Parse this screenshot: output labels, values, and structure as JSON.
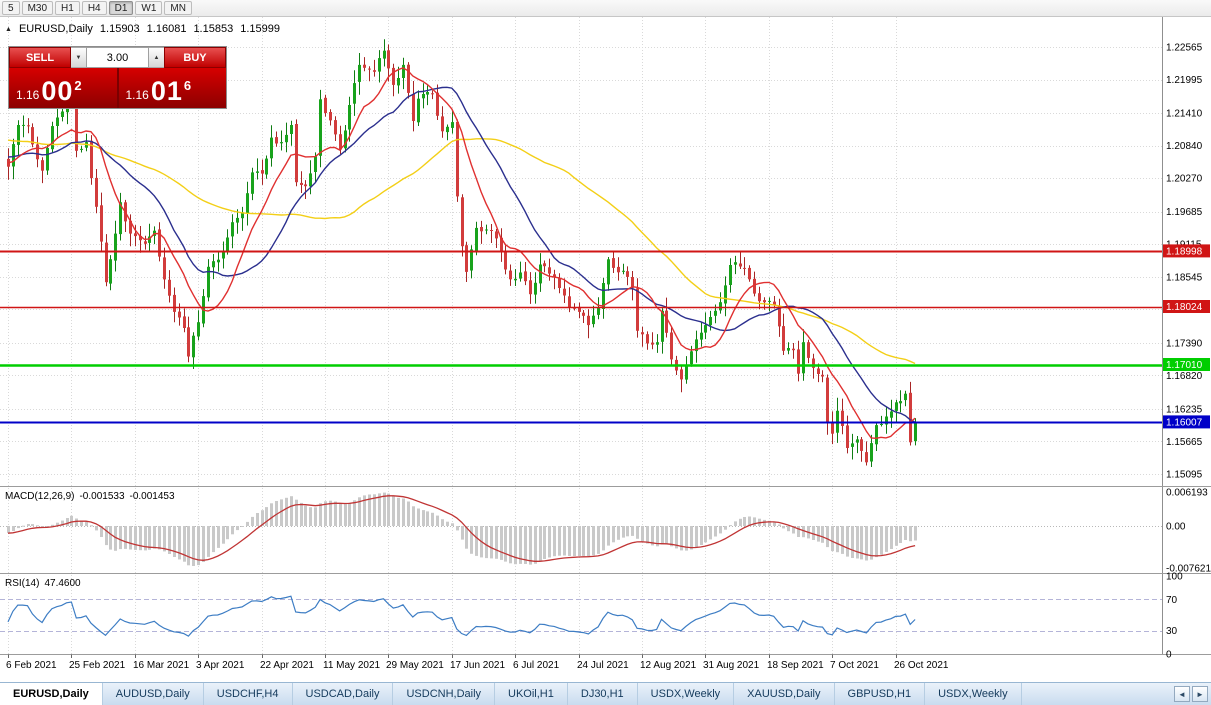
{
  "toolbar": {
    "timeframes": [
      "5",
      "M30",
      "H1",
      "H4",
      "D1",
      "W1",
      "MN"
    ],
    "active": "D1"
  },
  "icons": {
    "collapse_triangle": "▲",
    "spin_up": "▲",
    "spin_down": "▼",
    "tab_scroll_left": "◄",
    "tab_scroll_right": "►"
  },
  "chart_header": {
    "symbol": "EURUSD,Daily",
    "open": "1.15903",
    "high": "1.16081",
    "low": "1.15853",
    "close": "1.15999"
  },
  "trade_panel": {
    "sell_label": "SELL",
    "buy_label": "BUY",
    "volume": "3.00",
    "sell_price": {
      "prefix": "1.16",
      "big": "00",
      "sup": "2"
    },
    "buy_price": {
      "prefix": "1.16",
      "big": "01",
      "sup": "6"
    }
  },
  "indicators": {
    "macd": {
      "name": "MACD(12,26,9)",
      "value_main": "-0.001533",
      "value_signal": "-0.001453"
    },
    "rsi": {
      "name": "RSI(14)",
      "value": "47.4600"
    }
  },
  "price_axis": {
    "labels": [
      "1.22565",
      "1.21995",
      "1.21410",
      "1.20840",
      "1.20270",
      "1.19685",
      "1.19115",
      "1.18545",
      "1.17975",
      "1.17390",
      "1.16820",
      "1.16235",
      "1.15665",
      "1.15095"
    ]
  },
  "macd_axis": [
    {
      "label": "0.006193",
      "value": 0.006193
    },
    {
      "label": "0.00",
      "value": 0
    },
    {
      "label": "-0.007621",
      "value": -0.007621
    }
  ],
  "rsi_axis": [
    {
      "label": "100",
      "value": 100
    },
    {
      "label": "70",
      "value": 70
    },
    {
      "label": "30",
      "value": 30
    },
    {
      "label": "0",
      "value": 0
    }
  ],
  "levels": [
    {
      "price": "1.18998",
      "color": "#d01515",
      "thickness": 2
    },
    {
      "price": "1.18024",
      "color": "#d01515",
      "thickness": 1.5
    },
    {
      "price": "1.17010",
      "color": "#00ce00",
      "thickness": 2.5
    },
    {
      "price": "1.16007",
      "color": "#0000c8",
      "thickness": 2
    }
  ],
  "date_axis": [
    {
      "label": "6 Feb 2021",
      "index": 0
    },
    {
      "label": "25 Feb 2021",
      "index": 13
    },
    {
      "label": "16 Mar 2021",
      "index": 26
    },
    {
      "label": "3 Apr 2021",
      "index": 39
    },
    {
      "label": "22 Apr 2021",
      "index": 52
    },
    {
      "label": "11 May 2021",
      "index": 65
    },
    {
      "label": "29 May 2021",
      "index": 78
    },
    {
      "label": "17 Jun 2021",
      "index": 91
    },
    {
      "label": "6 Jul 2021",
      "index": 104
    },
    {
      "label": "24 Jul 2021",
      "index": 117
    },
    {
      "label": "12 Aug 2021",
      "index": 130
    },
    {
      "label": "31 Aug 2021",
      "index": 143
    },
    {
      "label": "18 Sep 2021",
      "index": 156
    },
    {
      "label": "7 Oct 2021",
      "index": 169
    },
    {
      "label": "26 Oct 2021",
      "index": 182
    }
  ],
  "bottom_tabs": {
    "items": [
      {
        "label": "EURUSD,Daily",
        "active": true
      },
      {
        "label": "AUDUSD,Daily",
        "active": false
      },
      {
        "label": "USDCHF,H4",
        "active": false
      },
      {
        "label": "USDCAD,Daily",
        "active": false
      },
      {
        "label": "USDCNH,Daily",
        "active": false
      },
      {
        "label": "UKOil,H1",
        "active": false
      },
      {
        "label": "DJ30,H1",
        "active": false
      },
      {
        "label": "USDX,Weekly",
        "active": false
      },
      {
        "label": "XAUUSD,Daily",
        "active": false
      },
      {
        "label": "GBPUSD,H1",
        "active": false
      },
      {
        "label": "USDX,Weekly",
        "active": false
      }
    ]
  },
  "colors": {
    "candle_up": "#18a31c",
    "candle_up_dark": "#0f7d13",
    "candle_down": "#d23c3c",
    "candle_down_dark": "#a82525",
    "macd_hist": "#c9c9c9",
    "macd_signal": "#c03434",
    "rsi_line": "#3d7dc4",
    "rsi_levels": "#b4b4d8",
    "grid": "#d9d9d9",
    "panel_divider": "#9c9c9c",
    "axis_text": "#000000"
  },
  "chart_data": {
    "type": "candlestick",
    "symbol": "EURUSD",
    "timeframe": "Daily",
    "num_candles": 187,
    "visible_price_range": [
      1.15095,
      1.22565
    ],
    "prehistory": {
      "bars": 60,
      "start": 1.216
    },
    "close_anchors": [
      [
        0,
        1.2047
      ],
      [
        2,
        1.212
      ],
      [
        4,
        1.2118
      ],
      [
        7,
        1.204
      ],
      [
        9,
        1.2118
      ],
      [
        12,
        1.2165
      ],
      [
        13,
        1.2172
      ],
      [
        14,
        1.2075
      ],
      [
        16,
        1.209
      ],
      [
        19,
        1.1916
      ],
      [
        20,
        1.1845
      ],
      [
        22,
        1.193
      ],
      [
        23,
        1.1985
      ],
      [
        25,
        1.193
      ],
      [
        28,
        1.1912
      ],
      [
        30,
        1.1935
      ],
      [
        32,
        1.185
      ],
      [
        34,
        1.1793
      ],
      [
        36,
        1.1765
      ],
      [
        37,
        1.1715
      ],
      [
        39,
        1.1775
      ],
      [
        41,
        1.1872
      ],
      [
        44,
        1.19
      ],
      [
        46,
        1.195
      ],
      [
        48,
        1.1967
      ],
      [
        50,
        1.2037
      ],
      [
        52,
        1.2035
      ],
      [
        54,
        1.2098
      ],
      [
        56,
        1.209
      ],
      [
        58,
        1.212
      ],
      [
        59,
        1.202
      ],
      [
        61,
        1.2013
      ],
      [
        63,
        1.2065
      ],
      [
        64,
        1.2165
      ],
      [
        66,
        1.2128
      ],
      [
        68,
        1.2077
      ],
      [
        70,
        1.2155
      ],
      [
        72,
        1.2225
      ],
      [
        75,
        1.2213
      ],
      [
        77,
        1.225
      ],
      [
        79,
        1.219
      ],
      [
        81,
        1.2225
      ],
      [
        83,
        1.2127
      ],
      [
        84,
        1.2166
      ],
      [
        87,
        1.2174
      ],
      [
        89,
        1.2109
      ],
      [
        91,
        1.2125
      ],
      [
        92,
        1.1995
      ],
      [
        93,
        1.1908
      ],
      [
        94,
        1.1863
      ],
      [
        96,
        1.194
      ],
      [
        99,
        1.1935
      ],
      [
        101,
        1.1897
      ],
      [
        103,
        1.185
      ],
      [
        105,
        1.1862
      ],
      [
        107,
        1.1824
      ],
      [
        109,
        1.1876
      ],
      [
        111,
        1.186
      ],
      [
        113,
        1.1835
      ],
      [
        115,
        1.18
      ],
      [
        117,
        1.1793
      ],
      [
        119,
        1.177
      ],
      [
        121,
        1.18
      ],
      [
        123,
        1.1885
      ],
      [
        124,
        1.187
      ],
      [
        126,
        1.1865
      ],
      [
        128,
        1.1835
      ],
      [
        129,
        1.176
      ],
      [
        131,
        1.1738
      ],
      [
        133,
        1.174
      ],
      [
        134,
        1.1795
      ],
      [
        136,
        1.171
      ],
      [
        138,
        1.1675
      ],
      [
        139,
        1.17
      ],
      [
        141,
        1.1745
      ],
      [
        143,
        1.177
      ],
      [
        145,
        1.1795
      ],
      [
        146,
        1.181
      ],
      [
        148,
        1.1875
      ],
      [
        149,
        1.188
      ],
      [
        151,
        1.187
      ],
      [
        153,
        1.1825
      ],
      [
        155,
        1.181
      ],
      [
        157,
        1.1805
      ],
      [
        159,
        1.1725
      ],
      [
        161,
        1.1726
      ],
      [
        162,
        1.1685
      ],
      [
        163,
        1.174
      ],
      [
        165,
        1.1695
      ],
      [
        167,
        1.168
      ],
      [
        168,
        1.16
      ],
      [
        169,
        1.158
      ],
      [
        170,
        1.162
      ],
      [
        172,
        1.1555
      ],
      [
        174,
        1.157
      ],
      [
        176,
        1.153
      ],
      [
        178,
        1.1595
      ],
      [
        180,
        1.161
      ],
      [
        182,
        1.1635
      ],
      [
        184,
        1.165
      ],
      [
        185,
        1.1565
      ],
      [
        186,
        1.15999
      ]
    ],
    "moving_averages": [
      {
        "name": "slow",
        "period": 52,
        "color": "#f3cf17"
      },
      {
        "name": "mid",
        "period": 21,
        "color": "#2b2f8e"
      },
      {
        "name": "fast",
        "period": 10,
        "color": "#e03030"
      }
    ],
    "macd": {
      "fast": 12,
      "slow": 26,
      "signal": 9
    },
    "rsi": {
      "period": 14
    }
  }
}
